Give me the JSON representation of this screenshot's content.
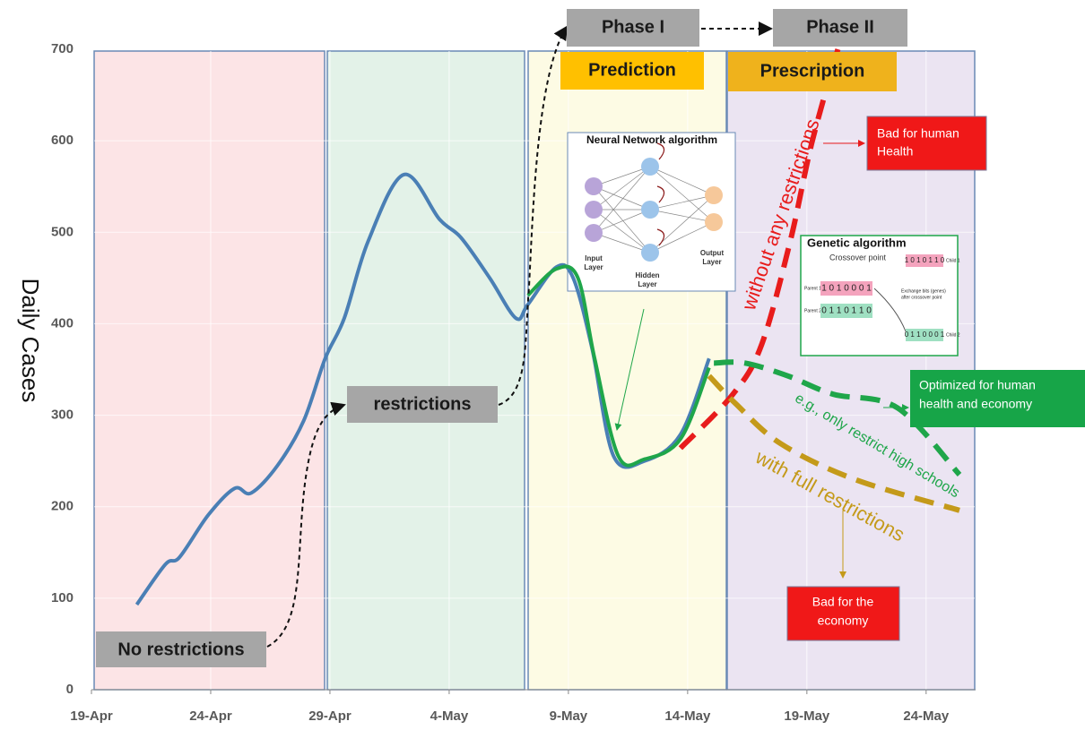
{
  "chart_data": {
    "type": "line",
    "y_label": "Daily Cases",
    "xlim": [
      0,
      37
    ],
    "ylim": [
      0,
      700
    ],
    "xticks": [
      {
        "value": 0,
        "label": "19-Apr"
      },
      {
        "value": 5,
        "label": "24-Apr"
      },
      {
        "value": 10,
        "label": "29-Apr"
      },
      {
        "value": 15,
        "label": "4-May"
      },
      {
        "value": 20,
        "label": "9-May"
      },
      {
        "value": 25,
        "label": "14-May"
      },
      {
        "value": 30,
        "label": "19-May"
      },
      {
        "value": 35,
        "label": "24-May"
      }
    ],
    "yticks": [
      0,
      100,
      200,
      300,
      400,
      500,
      600,
      700
    ],
    "grid": true,
    "series": [
      {
        "color": "#4a7fb5",
        "dashed": false,
        "x": [
          1.9,
          3.1,
          3.7,
          4.9,
          6.0,
          6.7,
          7.8,
          8.9,
          9.8,
          10.6,
          11.6,
          13.1,
          14.6,
          15.5,
          16.7,
          17.8,
          18.3,
          19.5,
          20.2,
          21.0,
          21.9,
          23.2,
          24.7,
          25.9
        ],
        "values": [
          93,
          137,
          145,
          191,
          220,
          215,
          245,
          294,
          362,
          406,
          490,
          563,
          514,
          494,
          450,
          406,
          421,
          462,
          450,
          372,
          255,
          250,
          279,
          362
        ]
      },
      {
        "color": "#1fa64a",
        "dashed": false,
        "x": [
          18.3,
          19.5,
          20.4,
          21.1,
          22.1,
          23.2,
          24.7,
          25.9
        ],
        "values": [
          431,
          460,
          450,
          362,
          255,
          252,
          274,
          352
        ]
      },
      {
        "color": "#e81c1c",
        "dashed": true,
        "x": [
          24.7,
          26.9,
          28.1,
          29.3,
          30.2,
          31.3
        ],
        "values": [
          264,
          323,
          377,
          490,
          597,
          700
        ]
      },
      {
        "color": "#1fa64a",
        "dashed": true,
        "x": [
          26.1,
          27.4,
          29.2,
          31.1,
          33.8,
          36.4
        ],
        "values": [
          357,
          357,
          343,
          323,
          308,
          235
        ]
      },
      {
        "color": "#c49a1a",
        "dashed": true,
        "x": [
          25.9,
          27.0,
          28.9,
          32.0,
          36.4
        ],
        "values": [
          343,
          313,
          269,
          230,
          196
        ]
      }
    ],
    "annotations": {
      "no_restrictions": "No restrictions",
      "restrictions": "restrictions",
      "phase_1": "Phase I",
      "phase_2": "Phase II",
      "prediction": "Prediction",
      "prescription": "Prescription",
      "neural_network": "Neural Network algorithm",
      "input_layer": [
        "Input",
        "Layer"
      ],
      "hidden_layer": [
        "Hidden",
        "Layer"
      ],
      "output_layer": [
        "Output",
        "Layer"
      ],
      "genetic": "Genetic algorithm",
      "crossover": "Crossover point",
      "parent_1": "Parent 1",
      "parent_2": "Parent 2",
      "child_1": "Child 1",
      "child_2": "Child 2",
      "bits_p1": "1 0 1 0 0 0 1",
      "bits_p2": "0 1 1 0 1 1 0",
      "bits_c1": "1 0 1 0 1 1 0",
      "bits_c2": "0 1 1 0 0 0 1",
      "exchange": [
        "Exchange bits (genes)",
        "after crossover point"
      ],
      "bad_health": [
        "Bad for human",
        "Health"
      ],
      "optimized": [
        "Optimized for  human",
        "health and economy"
      ],
      "bad_economy": [
        "Bad for the",
        "economy"
      ],
      "without": "without any restrictions",
      "eg": "e.g., only restrict high schools",
      "full": "with full restrictions"
    }
  }
}
